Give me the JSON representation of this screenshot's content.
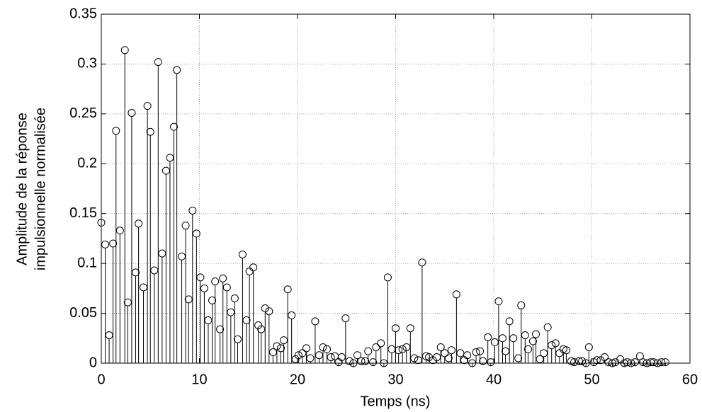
{
  "chart_data": {
    "type": "stem",
    "xlabel": "Temps (ns)",
    "ylabel": [
      "Amplitude de la réponse",
      "impulsionnelle normalisée"
    ],
    "xlim": [
      0,
      60
    ],
    "xticks": [
      0,
      10,
      20,
      30,
      40,
      50,
      60
    ],
    "ylim": [
      0,
      0.35
    ],
    "yticks": [
      0,
      0.05,
      0.1,
      0.15,
      0.2,
      0.25,
      0.3,
      0.35
    ],
    "grid": true,
    "color": "#000000",
    "x": [
      0,
      0.4,
      0.8,
      1.2,
      1.5,
      1.9,
      2.4,
      2.7,
      3.1,
      3.5,
      3.8,
      4.3,
      4.7,
      5.0,
      5.4,
      5.8,
      6.2,
      6.6,
      7.0,
      7.4,
      7.7,
      8.2,
      8.6,
      8.9,
      9.3,
      9.7,
      10.1,
      10.5,
      10.9,
      11.3,
      11.6,
      12.1,
      12.4,
      12.8,
      13.2,
      13.6,
      13.9,
      14.4,
      14.8,
      15.1,
      15.5,
      16.0,
      16.3,
      16.7,
      17.1,
      17.5,
      17.9,
      18.3,
      18.6,
      19.0,
      19.4,
      19.8,
      20.1,
      20.5,
      20.9,
      21.3,
      21.8,
      22.2,
      22.6,
      23.0,
      23.4,
      23.8,
      24.2,
      24.5,
      24.9,
      25.3,
      25.7,
      26.1,
      26.5,
      26.9,
      27.2,
      27.7,
      28.0,
      28.5,
      28.8,
      29.2,
      29.6,
      30.0,
      30.3,
      30.7,
      31.1,
      31.5,
      31.9,
      32.3,
      32.7,
      33.1,
      33.4,
      33.8,
      34.2,
      34.6,
      35.0,
      35.4,
      35.7,
      36.2,
      36.6,
      37.0,
      37.3,
      37.8,
      38.2,
      38.6,
      38.9,
      39.4,
      39.7,
      40.1,
      40.5,
      40.9,
      41.2,
      41.6,
      42.0,
      42.5,
      42.8,
      43.2,
      43.5,
      44.0,
      44.3,
      44.7,
      45.1,
      45.5,
      45.9,
      46.3,
      46.7,
      47.1,
      47.4,
      47.9,
      48.2,
      48.7,
      49.0,
      49.4,
      49.7,
      50.2,
      50.5,
      50.9,
      51.3,
      51.7,
      52.1,
      52.4,
      52.9,
      53.3,
      53.6,
      54.0,
      54.4,
      54.9,
      55.2,
      55.6,
      56.0,
      56.3,
      56.7,
      57.1,
      57.5
    ],
    "values": [
      0.141,
      0.119,
      0.028,
      0.12,
      0.233,
      0.133,
      0.314,
      0.061,
      0.251,
      0.091,
      0.14,
      0.076,
      0.258,
      0.232,
      0.093,
      0.302,
      0.11,
      0.193,
      0.206,
      0.237,
      0.294,
      0.107,
      0.138,
      0.064,
      0.153,
      0.13,
      0.086,
      0.075,
      0.043,
      0.063,
      0.082,
      0.034,
      0.085,
      0.076,
      0.051,
      0.065,
      0.024,
      0.109,
      0.043,
      0.092,
      0.096,
      0.038,
      0.034,
      0.055,
      0.052,
      0.011,
      0.017,
      0.015,
      0.023,
      0.074,
      0.048,
      0.004,
      0.008,
      0.01,
      0.015,
      0.005,
      0.042,
      0.008,
      0.016,
      0.014,
      0.006,
      0.007,
      0.001,
      0.006,
      0.045,
      0.002,
      0.0,
      0.008,
      0.002,
      0.002,
      0.012,
      0.001,
      0.016,
      0.02,
      0.0,
      0.086,
      0.014,
      0.035,
      0.013,
      0.014,
      0.016,
      0.035,
      0.005,
      0.003,
      0.101,
      0.007,
      0.006,
      0.003,
      0.006,
      0.016,
      0.01,
      0.005,
      0.013,
      0.069,
      0.01,
      0.003,
      0.008,
      0.0,
      0.011,
      0.012,
      0.002,
      0.026,
      0.001,
      0.021,
      0.062,
      0.025,
      0.012,
      0.042,
      0.025,
      0.005,
      0.058,
      0.028,
      0.014,
      0.022,
      0.029,
      0.004,
      0.01,
      0.036,
      0.018,
      0.02,
      0.01,
      0.014,
      0.013,
      0.002,
      0.001,
      0.002,
      0.002,
      0.0,
      0.016,
      0.001,
      0.003,
      0.003,
      0.006,
      0.001,
      0.0,
      0.001,
      0.004,
      0.0,
      0.001,
      0.0,
      0.001,
      0.007,
      0.001,
      0.0,
      0.001,
      0.001,
      0.0,
      0.001,
      0.001
    ]
  }
}
